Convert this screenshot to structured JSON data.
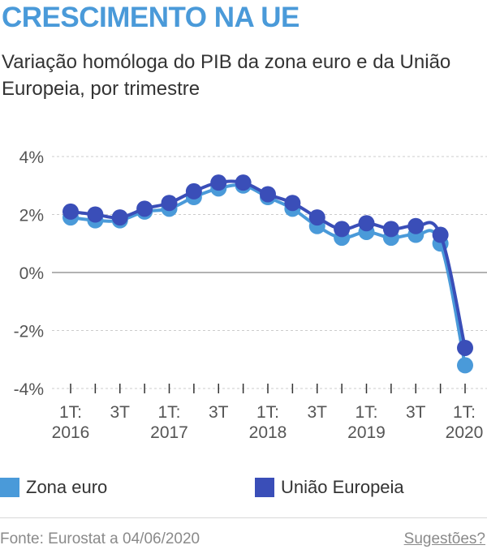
{
  "header": {
    "title": "CRESCIMENTO NA UE",
    "subtitle": "Variação homóloga do PIB da zona euro e da União Europeia, por trimestre"
  },
  "footer": {
    "source": "Fonte: Eurostat a 04/06/2020",
    "suggestions_link": "Sugestões?"
  },
  "colors": {
    "zona_euro": "#4a9ad9",
    "uniao_europeia": "#3a4eb8",
    "title": "#4a9ad9",
    "grid": "#cccccc",
    "zero_line": "#999999"
  },
  "chart_data": {
    "type": "line",
    "x": [
      "1T: 2016",
      "2T: 2016",
      "3T: 2016",
      "4T: 2016",
      "1T: 2017",
      "2T: 2017",
      "3T: 2017",
      "4T: 2017",
      "1T: 2018",
      "2T: 2018",
      "3T: 2018",
      "4T: 2018",
      "1T: 2019",
      "2T: 2019",
      "3T: 2019",
      "4T: 2019",
      "1T: 2020"
    ],
    "tick_labels": [
      {
        "index": 0,
        "lines": [
          "1T:",
          "2016"
        ]
      },
      {
        "index": 2,
        "lines": [
          "3T"
        ]
      },
      {
        "index": 4,
        "lines": [
          "1T:",
          "2017"
        ]
      },
      {
        "index": 6,
        "lines": [
          "3T"
        ]
      },
      {
        "index": 8,
        "lines": [
          "1T:",
          "2018"
        ]
      },
      {
        "index": 10,
        "lines": [
          "3T"
        ]
      },
      {
        "index": 12,
        "lines": [
          "1T:",
          "2019"
        ]
      },
      {
        "index": 14,
        "lines": [
          "3T"
        ]
      },
      {
        "index": 16,
        "lines": [
          "1T:",
          "2020"
        ]
      }
    ],
    "series": [
      {
        "name": "Zona euro",
        "color": "#4a9ad9",
        "values": [
          1.9,
          1.8,
          1.8,
          2.1,
          2.2,
          2.6,
          2.9,
          3.0,
          2.6,
          2.2,
          1.6,
          1.2,
          1.4,
          1.2,
          1.3,
          1.0,
          -3.2
        ]
      },
      {
        "name": "União Europeia",
        "color": "#3a4eb8",
        "values": [
          2.1,
          2.0,
          1.9,
          2.2,
          2.4,
          2.8,
          3.1,
          3.1,
          2.7,
          2.4,
          1.9,
          1.5,
          1.7,
          1.5,
          1.6,
          1.3,
          -2.6
        ]
      }
    ],
    "y_ticks": [
      4,
      2,
      0,
      -2,
      -4
    ],
    "y_tick_labels": [
      "4%",
      "2%",
      "0%",
      "-2%",
      "-4%"
    ],
    "ylim": [
      -4,
      4
    ],
    "grid": true,
    "legend_position": "bottom"
  }
}
